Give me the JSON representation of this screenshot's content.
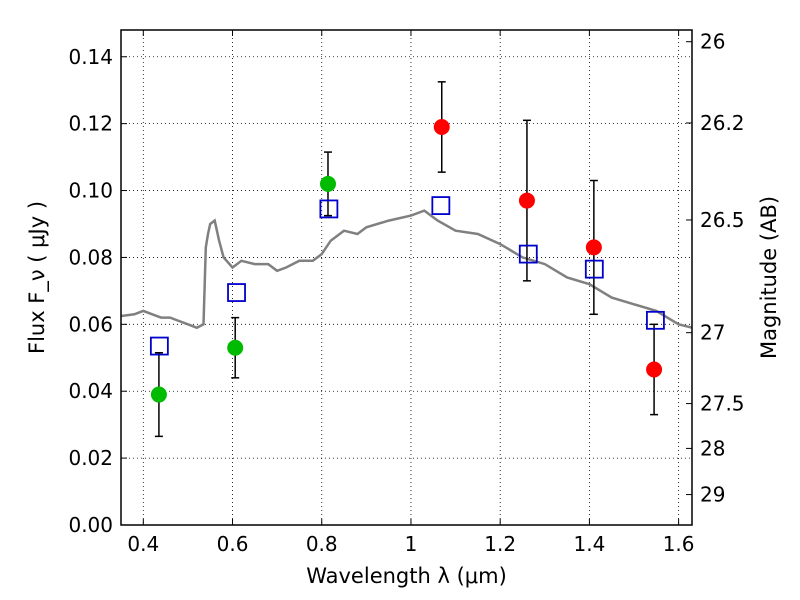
{
  "chart_data": {
    "type": "scatter",
    "xlabel": "Wavelength  λ (μm)",
    "ylabel": "Flux  F_ν  ( μJy )",
    "y2label": "Magnitude (AB)",
    "xlim": [
      0.35,
      1.63
    ],
    "ylim": [
      0.0,
      0.148
    ],
    "grid": true,
    "x_ticks": [
      0.4,
      0.6,
      0.8,
      1.0,
      1.2,
      1.4,
      1.6
    ],
    "x_tick_labels": [
      "0.4",
      "0.6",
      "0.8",
      "1",
      "1.2",
      "1.4",
      "1.6"
    ],
    "y_ticks": [
      0.0,
      0.02,
      0.04,
      0.06,
      0.08,
      0.1,
      0.12,
      0.14
    ],
    "y_tick_labels": [
      "0.00",
      "0.02",
      "0.04",
      "0.06",
      "0.08",
      "0.10",
      "0.12",
      "0.14"
    ],
    "y2_ticks": [
      {
        "label": "26",
        "flux": 0.1445
      },
      {
        "label": "26.2",
        "flux": 0.1202
      },
      {
        "label": "26.5",
        "flux": 0.0912
      },
      {
        "label": "27",
        "flux": 0.0575
      },
      {
        "label": "27.5",
        "flux": 0.0363
      },
      {
        "label": "28",
        "flux": 0.0229
      },
      {
        "label": "29",
        "flux": 0.0091
      }
    ],
    "series": [
      {
        "marker": "circle",
        "color": "#00bb00",
        "x": [
          0.435,
          0.606,
          0.814
        ],
        "y": [
          0.039,
          0.053,
          0.102
        ],
        "yerr": [
          0.0125,
          0.009,
          0.0095
        ]
      },
      {
        "marker": "circle",
        "color": "#ff0000",
        "x": [
          1.069,
          1.26,
          1.41,
          1.545
        ],
        "y": [
          0.119,
          0.097,
          0.083,
          0.0465
        ],
        "yerr": [
          0.0135,
          0.024,
          0.02,
          0.0135
        ]
      },
      {
        "marker": "open-square",
        "color": "#0000cc",
        "x": [
          0.436,
          0.609,
          0.816,
          1.067,
          1.263,
          1.411,
          1.548
        ],
        "y": [
          0.0535,
          0.0695,
          0.0945,
          0.0955,
          0.081,
          0.0765,
          0.0612
        ]
      },
      {
        "marker": "line",
        "color": "#808080",
        "x": [
          0.35,
          0.38,
          0.4,
          0.42,
          0.44,
          0.46,
          0.48,
          0.5,
          0.52,
          0.535,
          0.54,
          0.545,
          0.55,
          0.56,
          0.57,
          0.58,
          0.6,
          0.62,
          0.65,
          0.68,
          0.7,
          0.72,
          0.75,
          0.78,
          0.8,
          0.82,
          0.85,
          0.88,
          0.9,
          0.95,
          1.0,
          1.03,
          1.06,
          1.1,
          1.15,
          1.2,
          1.25,
          1.3,
          1.35,
          1.4,
          1.45,
          1.5,
          1.55,
          1.6,
          1.63
        ],
        "y": [
          0.0625,
          0.063,
          0.064,
          0.063,
          0.062,
          0.062,
          0.061,
          0.06,
          0.059,
          0.06,
          0.083,
          0.087,
          0.09,
          0.091,
          0.085,
          0.08,
          0.077,
          0.079,
          0.078,
          0.078,
          0.076,
          0.077,
          0.079,
          0.079,
          0.081,
          0.085,
          0.088,
          0.087,
          0.089,
          0.091,
          0.0925,
          0.094,
          0.091,
          0.088,
          0.087,
          0.084,
          0.08,
          0.078,
          0.074,
          0.072,
          0.068,
          0.066,
          0.064,
          0.06,
          0.059
        ]
      }
    ]
  }
}
